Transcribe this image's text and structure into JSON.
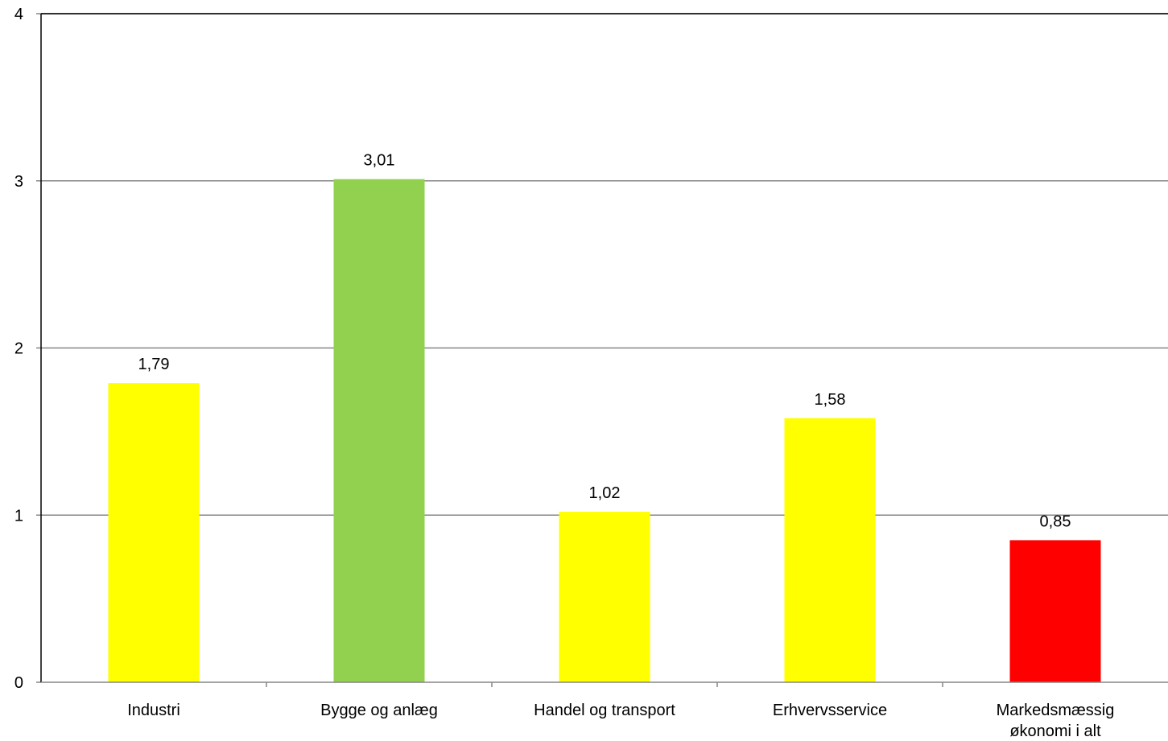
{
  "chart_data": {
    "type": "bar",
    "categories": [
      [
        "Industri"
      ],
      [
        "Bygge og anlæg"
      ],
      [
        "Handel og transport"
      ],
      [
        "Erhvervsservice"
      ],
      [
        "Markedsmæssig",
        "økonomi i alt"
      ]
    ],
    "values": [
      1.79,
      3.01,
      1.02,
      1.58,
      0.85
    ],
    "data_labels": [
      "1,79",
      "3,01",
      "1,02",
      "1,58",
      "0,85"
    ],
    "bar_colors": [
      "#FFFF00",
      "#92D050",
      "#FFFF00",
      "#FFFF00",
      "#FF0000"
    ],
    "ylim": [
      0,
      4
    ],
    "yticks": [
      0,
      1,
      2,
      3,
      4
    ],
    "ytick_labels": [
      "0",
      "1",
      "2",
      "3",
      "4"
    ],
    "grid": true,
    "legend": "none",
    "title": "",
    "xlabel": "",
    "ylabel": ""
  }
}
